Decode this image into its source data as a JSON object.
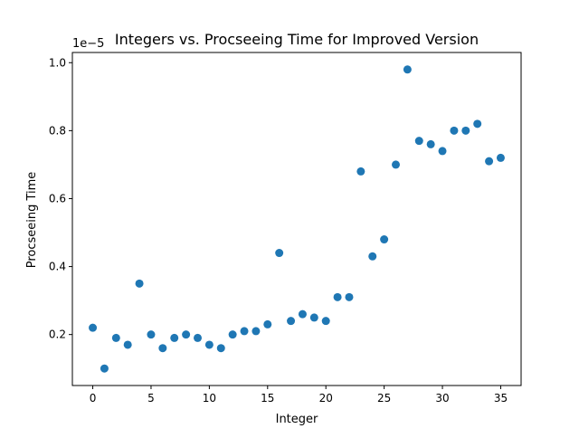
{
  "chart_data": {
    "type": "scatter",
    "title": "Integers vs. Procseeing Time for Improved Version",
    "xlabel": "Integer",
    "ylabel": "Procseeing Time",
    "offset_text": "1e−5",
    "xlim": [
      -1.75,
      36.75
    ],
    "ylim": [
      0.05,
      1.03
    ],
    "xticks": [
      0,
      5,
      10,
      15,
      20,
      25,
      30,
      35
    ],
    "yticks": [
      0.2,
      0.4,
      0.6,
      0.8,
      1.0
    ],
    "ytick_labels": [
      "0.2",
      "0.4",
      "0.6",
      "0.8",
      "1.0"
    ],
    "grid": false,
    "legend": "none",
    "marker_color": "#1f77b4",
    "x": [
      0,
      1,
      2,
      3,
      4,
      5,
      6,
      7,
      8,
      9,
      10,
      11,
      12,
      13,
      14,
      15,
      16,
      17,
      18,
      19,
      20,
      21,
      22,
      23,
      24,
      25,
      26,
      27,
      28,
      29,
      30,
      31,
      32,
      33,
      34,
      35
    ],
    "y": [
      0.22,
      0.1,
      0.19,
      0.17,
      0.35,
      0.2,
      0.16,
      0.19,
      0.2,
      0.19,
      0.17,
      0.16,
      0.2,
      0.21,
      0.21,
      0.23,
      0.44,
      0.24,
      0.26,
      0.25,
      0.24,
      0.31,
      0.31,
      0.68,
      0.43,
      0.48,
      0.7,
      0.98,
      0.77,
      0.76,
      0.74,
      0.8,
      0.8,
      0.82,
      0.71,
      0.72
    ]
  }
}
